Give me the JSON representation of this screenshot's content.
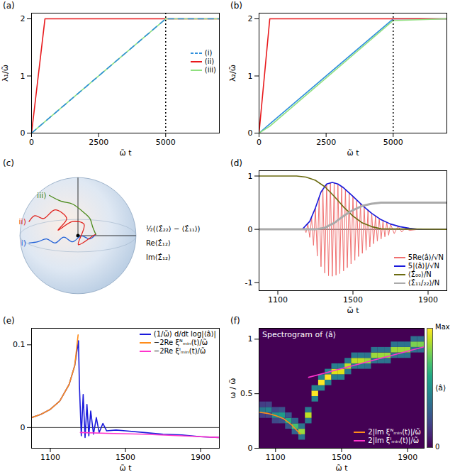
{
  "chart_data": [
    {
      "type": "line",
      "title": "(a)",
      "x_label": "ω̃ t",
      "y_label": "λ₁/ω̃",
      "xlim": [
        0,
        7000
      ],
      "xticks": [
        0,
        2500,
        5000
      ],
      "ylim": [
        0,
        2.1
      ],
      "yticks": [
        0,
        1,
        2
      ],
      "reference_x": 5000,
      "legend": "right",
      "series": [
        {
          "name": "(i)",
          "color": "#2f8fdc",
          "line_style": "dashed",
          "x": [
            0,
            500,
            5000,
            7000
          ],
          "values": [
            0,
            0.2,
            2,
            2
          ]
        },
        {
          "name": "(ii)",
          "color": "#e8191c",
          "line_style": "solid",
          "x": [
            0,
            500,
            5000,
            7000
          ],
          "values": [
            0,
            2,
            2,
            2
          ]
        },
        {
          "name": "(iii)",
          "color": "#8fe07f",
          "line_style": "solid",
          "x": [
            0,
            500,
            5000,
            7000
          ],
          "values": [
            0,
            0.2,
            2,
            2
          ]
        }
      ]
    },
    {
      "type": "line",
      "title": "(b)",
      "x_label": "ω̃ t",
      "y_label": "λ₂/ω̃",
      "xlim": [
        0,
        7000
      ],
      "xticks": [
        0,
        2500,
        5000
      ],
      "ylim": [
        0,
        2.1
      ],
      "yticks": [
        0,
        1,
        2
      ],
      "reference_x": 5000,
      "series": [
        {
          "name": "(i)",
          "color": "#2f8fdc",
          "line_style": "solid",
          "x": [
            0,
            400,
            5000,
            7000
          ],
          "values": [
            0,
            0.16,
            2,
            2
          ]
        },
        {
          "name": "(ii)",
          "color": "#e8191c",
          "line_style": "solid",
          "x": [
            0,
            400,
            5000,
            7000
          ],
          "values": [
            0,
            2,
            2,
            2
          ]
        },
        {
          "name": "(iii)",
          "color": "#8fe07f",
          "line_style": "solid",
          "x": [
            0,
            400,
            5000,
            7000
          ],
          "values": [
            0,
            0.12,
            1.97,
            2
          ]
        }
      ]
    },
    {
      "type": "trajectory",
      "title": "(c)",
      "tick_labels": false,
      "xlim": [
        -1.1,
        1.1
      ],
      "ylim": [
        -1.1,
        1.1
      ],
      "axis_labels": [
        "½(⟨Σ̂₂₂⟩ − ⟨Σ̂₁₁⟩)",
        "Re⟨Σ̂₁₂⟩",
        "Im⟨Σ̂₁₂⟩"
      ],
      "series": [
        {
          "name": "i)",
          "color": "#1f5fd6",
          "x": [
            -0.85,
            -0.7,
            -0.55,
            -0.4,
            -0.25,
            -0.1,
            0.05,
            0.2,
            0.3
          ],
          "values": [
            -0.12,
            -0.1,
            -0.05,
            -0.12,
            -0.02,
            -0.1,
            0.0,
            -0.05,
            0.03
          ]
        },
        {
          "name": "ii)",
          "color": "#e0201b",
          "x": [
            -0.85,
            -0.75,
            -0.6,
            -0.4,
            -0.2,
            -0.35,
            -0.1,
            0.1,
            0.0,
            0.25,
            0.3
          ],
          "values": [
            0.25,
            0.35,
            0.3,
            0.45,
            0.3,
            0.1,
            0.25,
            0.2,
            -0.15,
            0.0,
            0.03
          ]
        },
        {
          "name": "iii)",
          "color": "#4b8a1a",
          "x": [
            -0.5,
            -0.3,
            -0.1,
            0.1,
            0.2,
            0.25,
            0.3
          ],
          "values": [
            0.7,
            0.6,
            0.55,
            0.4,
            0.3,
            0.15,
            0.03
          ]
        }
      ]
    },
    {
      "type": "line",
      "title": "(d)",
      "x_label": "ω̃ t",
      "xlim": [
        1000,
        2000
      ],
      "xticks": [
        1100,
        1500,
        1900
      ],
      "ylim": [
        -1.15,
        1.1
      ],
      "yticks": [
        -1,
        0,
        1
      ],
      "reference_y": 0,
      "legend": "lower right",
      "series": [
        {
          "name": "5Re⟨â⟩/√N",
          "color": "#f07070",
          "x": [
            1000,
            1230,
            1240,
            1250,
            1260,
            1270,
            1280,
            1290,
            1300,
            1310,
            1320,
            1330,
            1340,
            1350,
            1360,
            1370,
            1380,
            1390,
            1400,
            1410,
            1420,
            1430,
            1440,
            1450,
            1460,
            1470,
            1480,
            1490,
            1500,
            1510,
            1520,
            1530,
            1540,
            1550,
            1560,
            1570,
            1580,
            1590,
            1600,
            1610,
            1620,
            1630,
            1640,
            1650,
            1660,
            1670,
            1680,
            1690,
            1700,
            1720,
            1740,
            1760,
            1780,
            1800,
            1850,
            2000
          ],
          "values": [
            0,
            0,
            0.03,
            -0.06,
            0.1,
            -0.15,
            0.22,
            -0.3,
            0.4,
            -0.5,
            0.6,
            -0.7,
            0.76,
            -0.82,
            0.85,
            -0.87,
            0.88,
            -0.88,
            0.87,
            -0.86,
            0.85,
            -0.83,
            0.8,
            -0.78,
            0.75,
            -0.72,
            0.69,
            -0.65,
            0.62,
            -0.58,
            0.55,
            -0.51,
            0.48,
            -0.45,
            0.42,
            -0.39,
            0.36,
            -0.33,
            0.3,
            -0.27,
            0.25,
            -0.22,
            0.2,
            -0.18,
            0.16,
            -0.14,
            0.13,
            -0.11,
            0.1,
            -0.08,
            0.06,
            -0.05,
            0.03,
            -0.02,
            0,
            0
          ]
        },
        {
          "name": "5|⟨â⟩|/√N",
          "color": "#1a1adb",
          "x": [
            1000,
            1230,
            1270,
            1300,
            1330,
            1360,
            1390,
            1420,
            1450,
            1500,
            1550,
            1600,
            1650,
            1700,
            1750,
            1800,
            1850,
            2000
          ],
          "values": [
            0,
            0,
            0.15,
            0.4,
            0.7,
            0.85,
            0.88,
            0.85,
            0.78,
            0.62,
            0.45,
            0.3,
            0.18,
            0.1,
            0.05,
            0.02,
            0,
            0
          ]
        },
        {
          "name": "⟨Σ̂₀₀⟩/N",
          "color": "#6b6b10",
          "x": [
            1000,
            1200,
            1250,
            1300,
            1350,
            1400,
            1450,
            1500,
            1550,
            1600,
            1650,
            2000
          ],
          "values": [
            1,
            1,
            0.98,
            0.92,
            0.8,
            0.62,
            0.42,
            0.25,
            0.12,
            0.05,
            0.01,
            0
          ]
        },
        {
          "name": "⟨Σ̂₁₁/₂₂⟩/N",
          "color": "#aaaaaa",
          "x": [
            1000,
            1300,
            1350,
            1400,
            1450,
            1500,
            1550,
            1600,
            1650,
            2000
          ],
          "values": [
            0,
            0,
            0.03,
            0.12,
            0.25,
            0.36,
            0.44,
            0.48,
            0.5,
            0.5
          ]
        }
      ]
    },
    {
      "type": "line",
      "title": "(e)",
      "x_label": "ω̃ t",
      "xlim": [
        1000,
        2000
      ],
      "xticks": [
        1100,
        1500,
        1900
      ],
      "ylim": [
        -0.025,
        0.12
      ],
      "yticks": [
        0,
        0.1
      ],
      "reference_y": 0,
      "legend": "upper right",
      "series": [
        {
          "name": "(1/ω̃) d/dt log|⟨â⟩|",
          "color": "#1a1adb",
          "x": [
            1000,
            1050,
            1100,
            1150,
            1200,
            1230,
            1250,
            1255,
            1265,
            1275,
            1285,
            1295,
            1305,
            1315,
            1330,
            1345,
            1360,
            1380,
            1400,
            1450,
            1500,
            1600,
            1700,
            1800,
            1900,
            2000
          ],
          "values": [
            0.012,
            0.016,
            0.022,
            0.032,
            0.052,
            0.075,
            0.105,
            0.05,
            -0.01,
            0.04,
            -0.012,
            0.028,
            -0.01,
            0.02,
            -0.008,
            0.012,
            -0.006,
            0.005,
            -0.004,
            -0.003,
            -0.004,
            -0.006,
            -0.008,
            -0.009,
            -0.011,
            -0.012
          ]
        },
        {
          "name": "−2Re ξᴺₘᵢₙ(t)/ω̃",
          "color": "#ff8c1a",
          "x": [
            1000,
            1050,
            1100,
            1150,
            1200,
            1230,
            1248
          ],
          "values": [
            0.012,
            0.016,
            0.022,
            0.032,
            0.052,
            0.075,
            0.112
          ]
        },
        {
          "name": "−2Re ξᴵₘᵢₙ(t)/ω̃",
          "color": "#ff33cc",
          "x": [
            1260,
            1400,
            1600,
            1800,
            2000
          ],
          "values": [
            -0.006,
            -0.007,
            -0.008,
            -0.01,
            -0.012
          ]
        }
      ]
    },
    {
      "type": "heatmap",
      "title": "(f)",
      "annotations": [
        "Spectrogram of ⟨â⟩"
      ],
      "x_label": "ω̃ t",
      "y_label": "ω / ω̃",
      "xlim": [
        1000,
        2000
      ],
      "xticks": [
        1100,
        1500,
        1900
      ],
      "ylim": [
        0,
        1.1
      ],
      "yticks": [
        0,
        0.5,
        1
      ],
      "legend": "lower right",
      "colorbar_label": "⟨â⟩",
      "colorbar_range": [
        0,
        1
      ],
      "colorbar_ticks": [
        0,
        {
          "value": 1,
          "label": "Max"
        }
      ],
      "cells": {
        "x": [
          1020,
          1020,
          1020,
          1060,
          1060,
          1060,
          1100,
          1100,
          1100,
          1140,
          1140,
          1140,
          1180,
          1180,
          1180,
          1220,
          1220,
          1220,
          1260,
          1260,
          1260,
          1300,
          1300,
          1300,
          1340,
          1340,
          1340,
          1380,
          1380,
          1380,
          1420,
          1420,
          1420,
          1460,
          1460,
          1460,
          1500,
          1500,
          1500,
          1540,
          1540,
          1540,
          1580,
          1580,
          1580,
          1620,
          1620,
          1620,
          1660,
          1660,
          1660,
          1700,
          1700,
          1700,
          1740,
          1740,
          1740,
          1780,
          1780,
          1780,
          1820,
          1820,
          1820,
          1860,
          1860,
          1860,
          1900,
          1900,
          1900,
          1940,
          1940,
          1940,
          1980,
          1980,
          1980
        ],
        "y": [
          0.3,
          0.35,
          0.4,
          0.3,
          0.35,
          0.4,
          0.25,
          0.3,
          0.35,
          0.25,
          0.3,
          0.35,
          0.2,
          0.25,
          0.3,
          0.15,
          0.2,
          0.25,
          0.1,
          0.15,
          0.2,
          0.25,
          0.3,
          0.35,
          0.45,
          0.5,
          0.55,
          0.55,
          0.6,
          0.65,
          0.6,
          0.65,
          0.7,
          0.65,
          0.7,
          0.75,
          0.65,
          0.7,
          0.75,
          0.7,
          0.75,
          0.8,
          0.75,
          0.8,
          0.85,
          0.75,
          0.8,
          0.85,
          0.75,
          0.8,
          0.85,
          0.8,
          0.85,
          0.9,
          0.8,
          0.85,
          0.9,
          0.8,
          0.85,
          0.9,
          0.85,
          0.9,
          0.95,
          0.85,
          0.9,
          0.95,
          0.85,
          0.9,
          0.95,
          0.9,
          0.95,
          1,
          0.9,
          0.95,
          1
        ],
        "values": [
          0.18,
          0.4,
          0.18,
          0.2,
          0.45,
          0.2,
          0.22,
          0.5,
          0.22,
          0.25,
          0.55,
          0.25,
          0.27,
          0.6,
          0.27,
          0.32,
          0.7,
          0.32,
          0.38,
          0.85,
          0.38,
          0.4,
          0.9,
          0.4,
          0.45,
          1,
          0.45,
          0.45,
          1,
          0.45,
          0.45,
          1,
          0.45,
          0.43,
          0.95,
          0.43,
          0.43,
          0.95,
          0.43,
          0.4,
          0.9,
          0.4,
          0.4,
          0.9,
          0.4,
          0.4,
          0.9,
          0.4,
          0.38,
          0.85,
          0.38,
          0.38,
          0.85,
          0.38,
          0.38,
          0.85,
          0.38,
          0.38,
          0.85,
          0.38,
          0.38,
          0.85,
          0.38,
          0.38,
          0.85,
          0.38,
          0.38,
          0.85,
          0.38,
          0.36,
          0.8,
          0.36,
          0.36,
          0.8,
          0.36
        ]
      },
      "series": [
        {
          "name": "2|Im ξᴺₘᵢₙ(t)|/ω̃",
          "color": "#ff8c1a",
          "x": [
            1000,
            1050,
            1100,
            1150,
            1200,
            1250
          ],
          "values": [
            0.33,
            0.32,
            0.3,
            0.27,
            0.21,
            0.13
          ]
        },
        {
          "name": "2|Im ξᴵₘᵢₙ(t)|/ω̃",
          "color": "#ff33cc",
          "x": [
            1300,
            1400,
            1500,
            1600,
            1700,
            1800,
            1900,
            2000
          ],
          "values": [
            0.65,
            0.69,
            0.73,
            0.77,
            0.81,
            0.85,
            0.89,
            0.93
          ]
        }
      ]
    }
  ]
}
